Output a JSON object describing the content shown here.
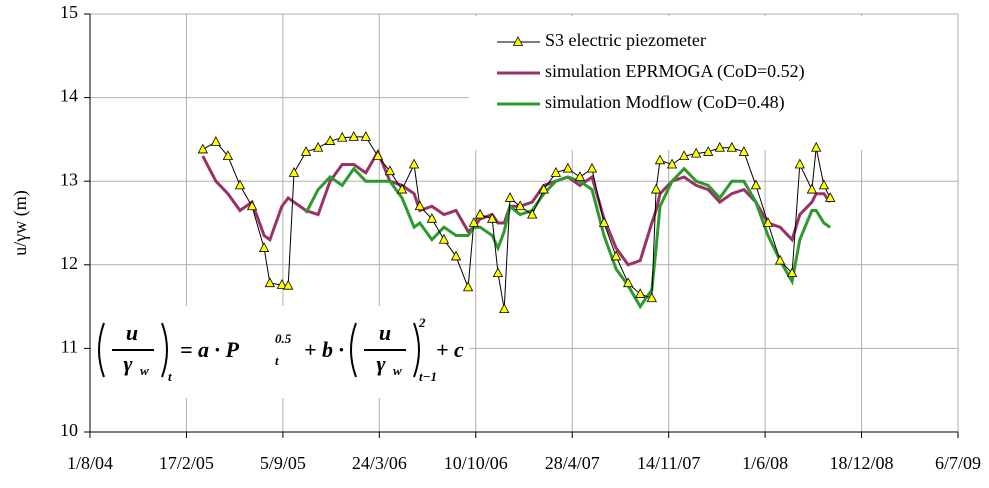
{
  "chart_data": {
    "type": "line",
    "ylabel": "u/γw (m)",
    "xlim": [
      38200,
      40000
    ],
    "xticks": [
      {
        "value": 38200,
        "label": "1/8/04"
      },
      {
        "value": 38400,
        "label": "17/2/05"
      },
      {
        "value": 38600,
        "label": "5/9/05"
      },
      {
        "value": 38800,
        "label": "24/3/06"
      },
      {
        "value": 39000,
        "label": "10/10/06"
      },
      {
        "value": 39200,
        "label": "28/4/07"
      },
      {
        "value": 39400,
        "label": "14/11/07"
      },
      {
        "value": 39600,
        "label": "1/6/08"
      },
      {
        "value": 39800,
        "label": "18/12/08"
      },
      {
        "value": 40000,
        "label": "6/7/09"
      }
    ],
    "ylim": [
      10,
      15
    ],
    "yticks": [
      10,
      11,
      12,
      13,
      14,
      15
    ],
    "grid": true,
    "legend": "top-right",
    "series": [
      {
        "name": "S3 electric piezometer",
        "color": "#000000",
        "marker_color": "#ffff00",
        "x": [
          38434,
          38461,
          38486,
          38511,
          38536,
          38561,
          38573,
          38598,
          38611,
          38623,
          38648,
          38673,
          38698,
          38723,
          38747,
          38772,
          38797,
          38822,
          38847,
          38872,
          38884,
          38909,
          38934,
          38959,
          38984,
          38996,
          39009,
          39034,
          39046,
          39059,
          39071,
          39092,
          39117,
          39141,
          39166,
          39191,
          39216,
          39241,
          39266,
          39291,
          39316,
          39341,
          39365,
          39374,
          39382,
          39407,
          39432,
          39457,
          39482,
          39506,
          39531,
          39556,
          39581,
          39606,
          39631,
          39656,
          39672,
          39697,
          39706,
          39722,
          39735
        ],
        "values": [
          13.38,
          13.47,
          13.3,
          12.95,
          12.7,
          12.2,
          11.78,
          11.76,
          11.75,
          13.1,
          13.35,
          13.4,
          13.48,
          13.52,
          13.53,
          13.53,
          13.3,
          13.12,
          12.9,
          13.2,
          12.7,
          12.55,
          12.3,
          12.1,
          11.73,
          12.5,
          12.6,
          12.55,
          11.9,
          11.47,
          12.8,
          12.7,
          12.6,
          12.9,
          13.1,
          13.15,
          13.05,
          13.15,
          12.5,
          12.1,
          11.78,
          11.65,
          11.6,
          12.9,
          13.25,
          13.2,
          13.3,
          13.33,
          13.35,
          13.4,
          13.4,
          13.35,
          12.95,
          12.5,
          12.05,
          11.9,
          13.2,
          12.9,
          13.4,
          12.95,
          12.8
        ]
      },
      {
        "name": "simulation EPRMOGA (CoD=0.52)",
        "color": "#993366",
        "x": [
          38434,
          38461,
          38486,
          38511,
          38536,
          38561,
          38573,
          38598,
          38611,
          38623,
          38648,
          38673,
          38698,
          38723,
          38747,
          38772,
          38797,
          38822,
          38847,
          38872,
          38884,
          38909,
          38934,
          38959,
          38984,
          38996,
          39009,
          39034,
          39046,
          39059,
          39071,
          39092,
          39117,
          39141,
          39166,
          39191,
          39216,
          39241,
          39266,
          39291,
          39316,
          39341,
          39365,
          39374,
          39382,
          39407,
          39432,
          39457,
          39482,
          39506,
          39531,
          39556,
          39581,
          39606,
          39631,
          39656,
          39672,
          39697,
          39706,
          39722,
          39735
        ],
        "values": [
          13.3,
          13.0,
          12.85,
          12.65,
          12.75,
          12.35,
          12.3,
          12.7,
          12.8,
          12.75,
          12.65,
          12.6,
          13.0,
          13.2,
          13.2,
          13.1,
          13.35,
          13.0,
          12.95,
          12.85,
          12.65,
          12.7,
          12.6,
          12.65,
          12.4,
          12.45,
          12.55,
          12.6,
          12.5,
          12.5,
          12.7,
          12.7,
          12.75,
          12.95,
          13.0,
          13.05,
          12.95,
          13.05,
          12.55,
          12.2,
          12.0,
          12.05,
          12.5,
          12.65,
          12.85,
          13.0,
          13.05,
          12.95,
          12.9,
          12.75,
          12.85,
          12.9,
          12.75,
          12.5,
          12.45,
          12.3,
          12.6,
          12.75,
          12.85,
          12.85,
          12.75
        ]
      },
      {
        "name": "simulation Modflow (CoD=0.48)",
        "color": "#2e9a2e",
        "x": [
          38648,
          38673,
          38698,
          38723,
          38747,
          38772,
          38797,
          38822,
          38847,
          38872,
          38884,
          38909,
          38934,
          38959,
          38984,
          38996,
          39009,
          39034,
          39046,
          39059,
          39071,
          39092,
          39117,
          39141,
          39166,
          39191,
          39216,
          39241,
          39266,
          39291,
          39316,
          39341,
          39365,
          39374,
          39382,
          39407,
          39432,
          39457,
          39482,
          39506,
          39531,
          39556,
          39581,
          39606,
          39631,
          39656,
          39672,
          39697,
          39706,
          39722,
          39735
        ],
        "values": [
          12.62,
          12.9,
          13.05,
          12.95,
          13.15,
          13.0,
          13.0,
          13.0,
          12.8,
          12.45,
          12.5,
          12.3,
          12.45,
          12.35,
          12.35,
          12.45,
          12.45,
          12.35,
          12.2,
          12.4,
          12.7,
          12.6,
          12.65,
          12.85,
          13.0,
          13.05,
          13.0,
          12.9,
          12.35,
          11.95,
          11.75,
          11.5,
          11.7,
          12.2,
          12.7,
          13.0,
          13.15,
          13.0,
          12.95,
          12.8,
          13.0,
          13.0,
          12.75,
          12.35,
          12.05,
          11.8,
          12.3,
          12.65,
          12.65,
          12.5,
          12.45
        ]
      }
    ],
    "formula": {
      "lhs_num": "u",
      "lhs_den": "γ",
      "lhs_den_sub": "w",
      "lhs_sub": "t",
      "mid": "= a · P",
      "mid_sub": "t",
      "mid_sup": "0.5",
      "plus": "+ b ·",
      "rhs_num": "u",
      "rhs_den": "γ",
      "rhs_den_sub": "w",
      "rhs_sup": "2",
      "rhs_sub": "t−1",
      "end": "+ c"
    }
  }
}
